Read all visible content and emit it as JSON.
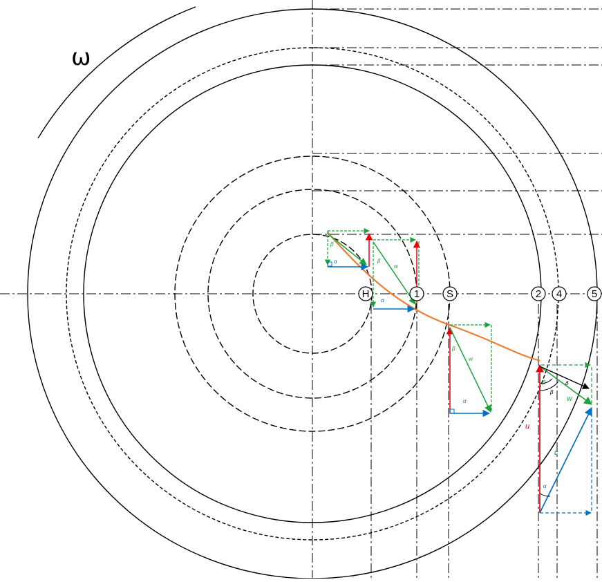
{
  "diagram": {
    "rotation_symbol": "ω",
    "stations": [
      "H",
      "1",
      "S",
      "2",
      "4",
      "5"
    ],
    "vector_symbols": {
      "u_outlet": "u",
      "c_outlet": "c",
      "w_outlet": "w",
      "beta": "β",
      "beta_s": "β",
      "delta": "δ",
      "alpha": "α"
    },
    "colors": {
      "u": "#e8000b",
      "w": "#1aa33a",
      "c": "#0070c0",
      "streamline": "#ed7d31",
      "outline": "#000000"
    }
  }
}
